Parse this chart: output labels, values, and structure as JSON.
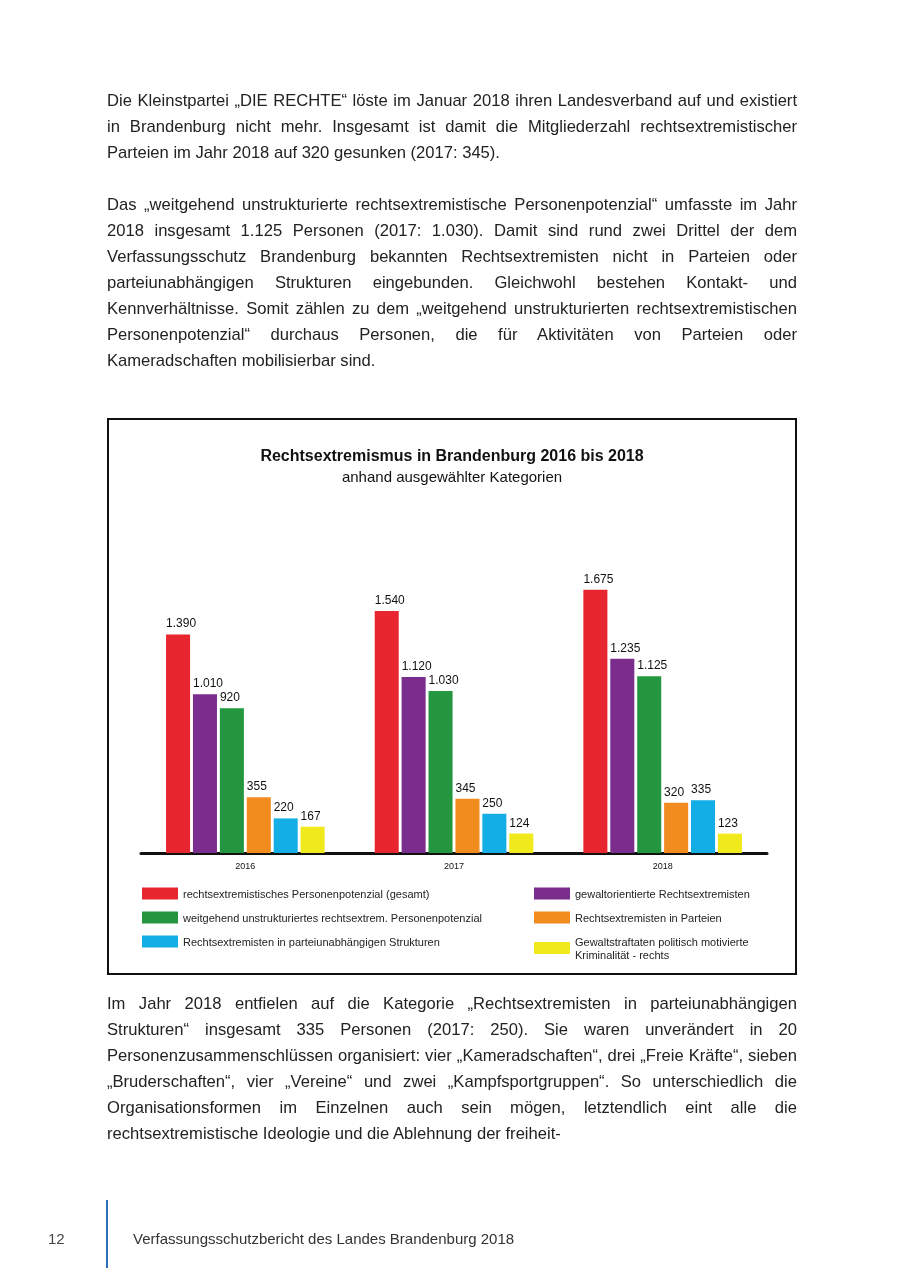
{
  "chart_data": {
    "type": "bar",
    "title": "Rechtsextremismus in Brandenburg 2016 bis 2018",
    "subtitle": "anhand ausgewählter Kategorien",
    "categories": [
      "2016",
      "2017",
      "2018"
    ],
    "series": [
      {
        "name": "rechtsextremistisches Personenpotenzial (gesamt)",
        "color": "#e8262f",
        "values": [
          1390,
          1540,
          1675
        ],
        "value_labels": [
          "1.390",
          "1.540",
          "1.675"
        ]
      },
      {
        "name": "gewaltorientierte Rechtsextremisten",
        "color": "#7b2d8e",
        "values": [
          1010,
          1120,
          1235
        ],
        "value_labels": [
          "1.010",
          "1.120",
          "1.235"
        ]
      },
      {
        "name": "weitgehend unstrukturiertes rechtsextrem. Personenpotenzial",
        "color": "#23963f",
        "values": [
          920,
          1030,
          1125
        ],
        "value_labels": [
          "920",
          "1.030",
          "1.125"
        ]
      },
      {
        "name": "Rechtsextremisten in Parteien",
        "color": "#f28c1e",
        "values": [
          355,
          345,
          320
        ],
        "value_labels": [
          "355",
          "345",
          "320"
        ]
      },
      {
        "name": "Rechtsextremisten in parteiunabhängigen Strukturen",
        "color": "#14aee6",
        "values": [
          220,
          250,
          335
        ],
        "value_labels": [
          "220",
          "250",
          "335"
        ]
      },
      {
        "name": "Gewaltstraftaten politisch motivierte Kriminalität - rechts",
        "color": "#f0ea1c",
        "values": [
          167,
          124,
          123
        ],
        "value_labels": [
          "167",
          "124",
          "123"
        ]
      }
    ],
    "legend": "bottom",
    "grid": false,
    "annotations": [
      "Die Kleinstpartei „DIE RECHTE“ löste im Januar 2018 ihren Landesverband auf und existiert in Brandenburg nicht mehr. Insgesamt ist damit die Mitgliederzahl rechtsextremistischer Parteien im Jahr 2018 auf 320 gesunken (2017: 345).",
      "Das „weitgehend unstrukturierte rechtsextremistische Personenpotenzial“ umfasste im Jahr 2018 insgesamt 1.125 Personen (2017: 1.030). Damit sind rund zwei Drittel der dem Verfassungsschutz Brandenburg bekannten Rechtsextremisten nicht in Parteien oder parteiunabhängigen Strukturen eingebunden. Gleichwohl bestehen Kontakt- und Kennverhältnisse. Somit zählen zu dem „weitgehend unstrukturierten rechtsextremistischen Personenpotenzial“ durchaus Personen, die für Aktivitäten von Parteien oder Kameradschaften mobilisierbar sind.",
      "Im Jahr 2018 entfielen auf die Kategorie „Rechtsextremisten in parteiunabhängigen Strukturen“ insgesamt 335 Personen (2017: 250). Sie waren unverändert in 20 Personenzusammenschlüssen organisiert: vier „Kameradschaften“, drei „Freie Kräfte“, sieben „Bruderschaften“, vier „Vereine“ und zwei „Kampfsportgruppen“. So unterschiedlich die Organisationsformen im Einzelnen auch sein mögen, letztendlich eint alle die rechtsextremistische Ideologie und die Ablehnung der freiheit-",
      "12",
      "Verfassungsschutzbericht des Landes Brandenburg 2018"
    ]
  }
}
